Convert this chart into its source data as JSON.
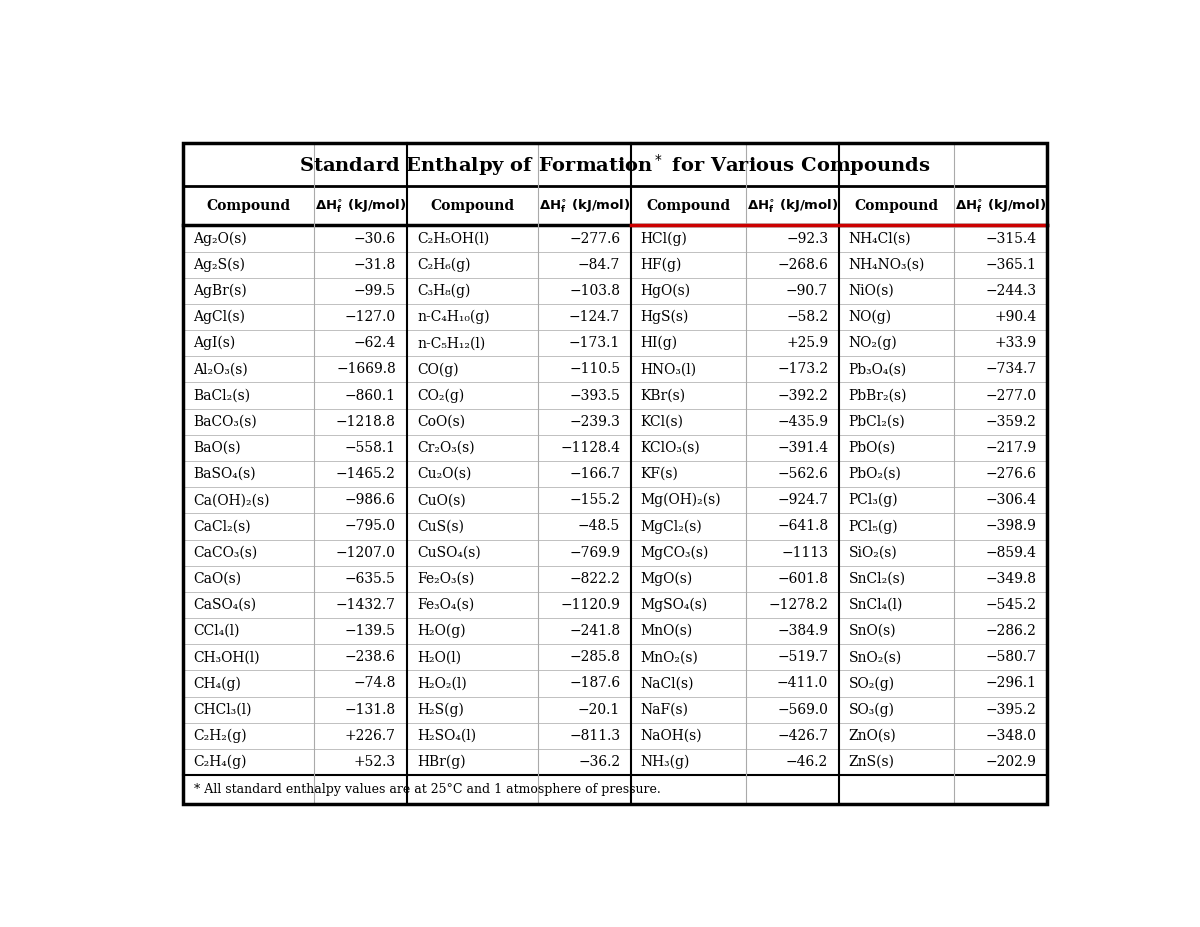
{
  "title_part1": "Standard Enthalpy of Formation",
  "title_asterisk": "*",
  "title_part2": " for Various Compounds",
  "footnote": "* All standard enthalpy values are at 25°C and 1 atmosphere of pressure.",
  "col1": [
    [
      "Ag₂O(s)",
      "−30.6"
    ],
    [
      "Ag₂S(s)",
      "−31.8"
    ],
    [
      "AgBr(s)",
      "−99.5"
    ],
    [
      "AgCl(s)",
      "−127.0"
    ],
    [
      "AgI(s)",
      "−62.4"
    ],
    [
      "Al₂O₃(s)",
      "−1669.8"
    ],
    [
      "BaCl₂(s)",
      "−860.1"
    ],
    [
      "BaCO₃(s)",
      "−1218.8"
    ],
    [
      "BaO(s)",
      "−558.1"
    ],
    [
      "BaSO₄(s)",
      "−1465.2"
    ],
    [
      "Ca(OH)₂(s)",
      "−986.6"
    ],
    [
      "CaCl₂(s)",
      "−795.0"
    ],
    [
      "CaCO₃(s)",
      "−1207.0"
    ],
    [
      "CaO(s)",
      "−635.5"
    ],
    [
      "CaSO₄(s)",
      "−1432.7"
    ],
    [
      "CCl₄(l)",
      "−139.5"
    ],
    [
      "CH₃OH(l)",
      "−238.6"
    ],
    [
      "CH₄(g)",
      "−74.8"
    ],
    [
      "CHCl₃(l)",
      "−131.8"
    ],
    [
      "C₂H₂(g)",
      "+226.7"
    ],
    [
      "C₂H₄(g)",
      "+52.3"
    ]
  ],
  "col2": [
    [
      "C₂H₅OH(l)",
      "−277.6"
    ],
    [
      "C₂H₆(g)",
      "−84.7"
    ],
    [
      "C₃H₈(g)",
      "−103.8"
    ],
    [
      "n-C₄H₁₀(g)",
      "−124.7"
    ],
    [
      "n-C₅H₁₂(l)",
      "−173.1"
    ],
    [
      "CO(g)",
      "−110.5"
    ],
    [
      "CO₂(g)",
      "−393.5"
    ],
    [
      "CoO(s)",
      "−239.3"
    ],
    [
      "Cr₂O₃(s)",
      "−1128.4"
    ],
    [
      "Cu₂O(s)",
      "−166.7"
    ],
    [
      "CuO(s)",
      "−155.2"
    ],
    [
      "CuS(s)",
      "−48.5"
    ],
    [
      "CuSO₄(s)",
      "−769.9"
    ],
    [
      "Fe₂O₃(s)",
      "−822.2"
    ],
    [
      "Fe₃O₄(s)",
      "−1120.9"
    ],
    [
      "H₂O(g)",
      "−241.8"
    ],
    [
      "H₂O(l)",
      "−285.8"
    ],
    [
      "H₂O₂(l)",
      "−187.6"
    ],
    [
      "H₂S(g)",
      "−20.1"
    ],
    [
      "H₂SO₄(l)",
      "−811.3"
    ],
    [
      "HBr(g)",
      "−36.2"
    ]
  ],
  "col3": [
    [
      "HCl(g)",
      "−92.3"
    ],
    [
      "HF(g)",
      "−268.6"
    ],
    [
      "HgO(s)",
      "−90.7"
    ],
    [
      "HgS(s)",
      "−58.2"
    ],
    [
      "HI(g)",
      "+25.9"
    ],
    [
      "HNO₃(l)",
      "−173.2"
    ],
    [
      "KBr(s)",
      "−392.2"
    ],
    [
      "KCl(s)",
      "−435.9"
    ],
    [
      "KClO₃(s)",
      "−391.4"
    ],
    [
      "KF(s)",
      "−562.6"
    ],
    [
      "Mg(OH)₂(s)",
      "−924.7"
    ],
    [
      "MgCl₂(s)",
      "−641.8"
    ],
    [
      "MgCO₃(s)",
      "−1113"
    ],
    [
      "MgO(s)",
      "−601.8"
    ],
    [
      "MgSO₄(s)",
      "−1278.2"
    ],
    [
      "MnO(s)",
      "−384.9"
    ],
    [
      "MnO₂(s)",
      "−519.7"
    ],
    [
      "NaCl(s)",
      "−411.0"
    ],
    [
      "NaF(s)",
      "−569.0"
    ],
    [
      "NaOH(s)",
      "−426.7"
    ],
    [
      "NH₃(g)",
      "−46.2"
    ]
  ],
  "col4": [
    [
      "NH₄Cl(s)",
      "−315.4"
    ],
    [
      "NH₄NO₃(s)",
      "−365.1"
    ],
    [
      "NiO(s)",
      "−244.3"
    ],
    [
      "NO(g)",
      "+90.4"
    ],
    [
      "NO₂(g)",
      "+33.9"
    ],
    [
      "Pb₃O₄(s)",
      "−734.7"
    ],
    [
      "PbBr₂(s)",
      "−277.0"
    ],
    [
      "PbCl₂(s)",
      "−359.2"
    ],
    [
      "PbO(s)",
      "−217.9"
    ],
    [
      "PbO₂(s)",
      "−276.6"
    ],
    [
      "PCl₃(g)",
      "−306.4"
    ],
    [
      "PCl₅(g)",
      "−398.9"
    ],
    [
      "SiO₂(s)",
      "−859.4"
    ],
    [
      "SnCl₂(s)",
      "−349.8"
    ],
    [
      "SnCl₄(l)",
      "−545.2"
    ],
    [
      "SnO(s)",
      "−286.2"
    ],
    [
      "SnO₂(s)",
      "−580.7"
    ],
    [
      "SO₂(g)",
      "−296.1"
    ],
    [
      "SO₃(g)",
      "−395.2"
    ],
    [
      "ZnO(s)",
      "−348.0"
    ],
    [
      "ZnS(s)",
      "−202.9"
    ]
  ],
  "bg_color": "#ffffff",
  "red_line_color": "#cc0000",
  "title_fontsize": 14,
  "header_fontsize": 10,
  "data_fontsize": 10,
  "footnote_fontsize": 9
}
